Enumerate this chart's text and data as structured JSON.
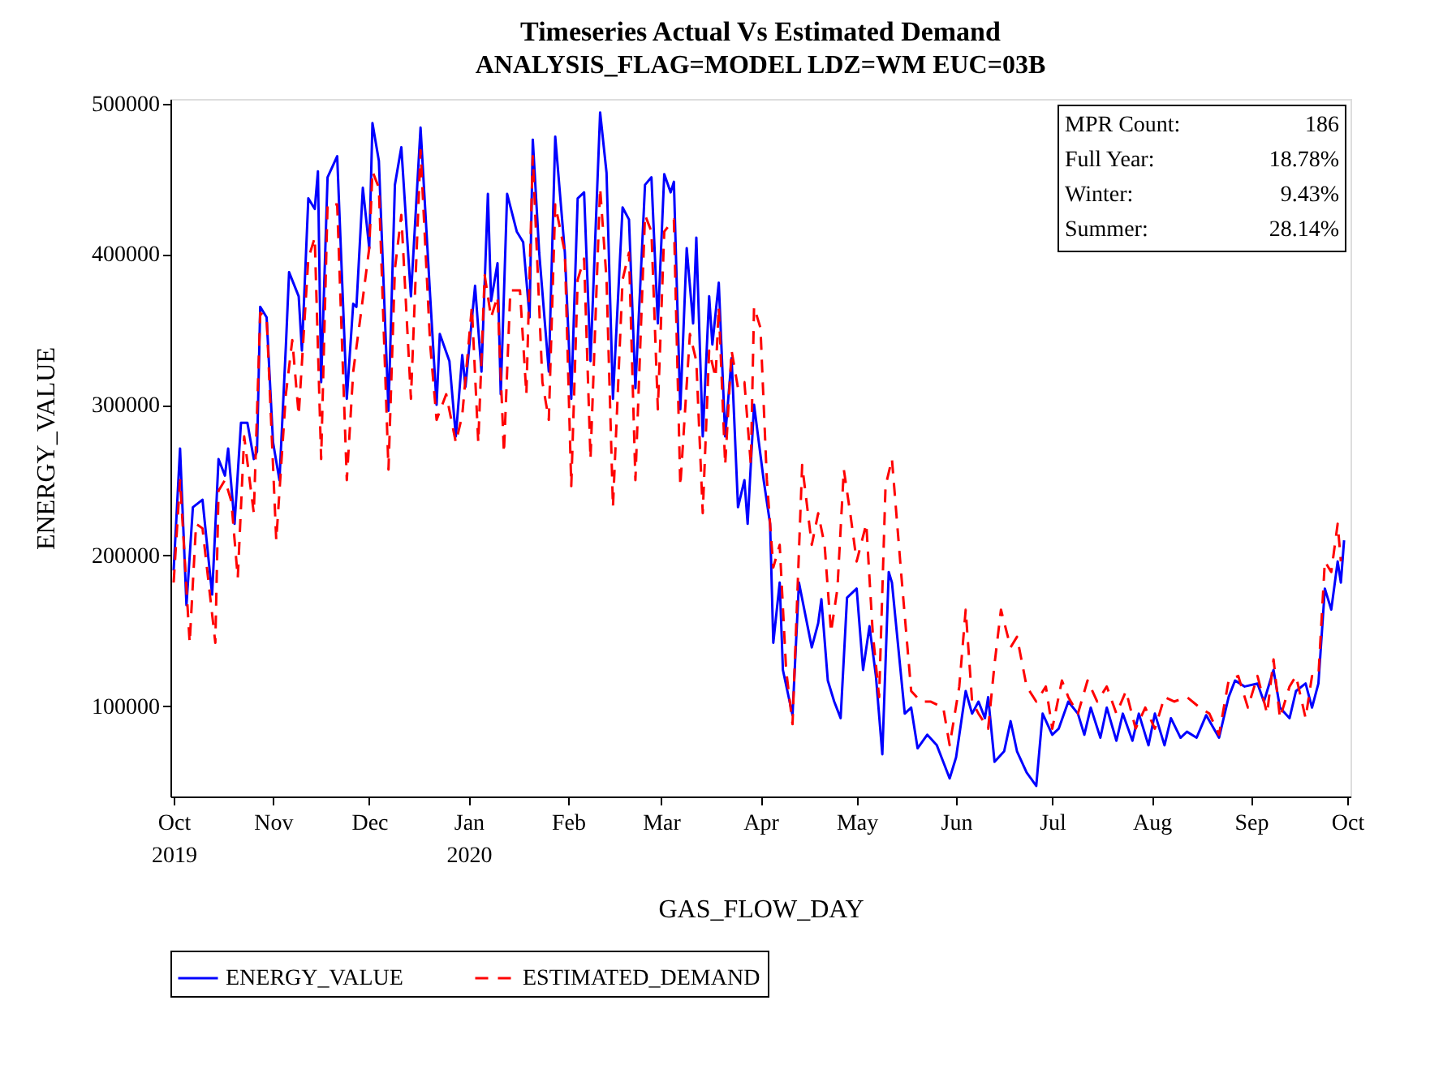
{
  "chart_data": {
    "type": "line",
    "title": "Timeseries Actual Vs Estimated Demand",
    "subtitle": "ANALYSIS_FLAG=MODEL LDZ=WM EUC=03B",
    "xlabel": "GAS_FLOW_DAY",
    "ylabel": "ENERGY_VALUE",
    "xlim": [
      "2019-09-30",
      "2020-10-02"
    ],
    "xticks": [
      {
        "value": "2019-10-01",
        "label": "Oct\n2019"
      },
      {
        "value": "2019-11-01",
        "label": "Nov"
      },
      {
        "value": "2019-12-01",
        "label": "Dec"
      },
      {
        "value": "2020-01-01",
        "label": "Jan\n2020"
      },
      {
        "value": "2020-02-01",
        "label": "Feb"
      },
      {
        "value": "2020-03-01",
        "label": "Mar"
      },
      {
        "value": "2020-04-01",
        "label": "Apr"
      },
      {
        "value": "2020-05-01",
        "label": "May"
      },
      {
        "value": "2020-06-01",
        "label": "Jun"
      },
      {
        "value": "2020-07-01",
        "label": "Jul"
      },
      {
        "value": "2020-08-01",
        "label": "Aug"
      },
      {
        "value": "2020-09-01",
        "label": "Sep"
      },
      {
        "value": "2020-10-01",
        "label": "Oct"
      }
    ],
    "ylim": [
      40000,
      503000
    ],
    "yticks": [
      100000,
      200000,
      300000,
      400000,
      500000
    ],
    "grid": false,
    "legend": "bottom",
    "annotations": [
      "MPR Count: 186",
      "Full Year: 18.78%",
      "Winter: 9.43%",
      "Summer: 28.14%"
    ],
    "series": [
      {
        "name": "ENERGY_VALUE",
        "color": "#0000ff",
        "line_style": "solid",
        "x": [
          "2019-10-01",
          "2019-10-03",
          "2019-10-05",
          "2019-10-07",
          "2019-10-10",
          "2019-10-13",
          "2019-10-15",
          "2019-10-17",
          "2019-10-18",
          "2019-10-20",
          "2019-10-22",
          "2019-10-24",
          "2019-10-26",
          "2019-10-27",
          "2019-10-28",
          "2019-10-30",
          "2019-11-01",
          "2019-11-03",
          "2019-11-05",
          "2019-11-06",
          "2019-11-09",
          "2019-11-10",
          "2019-11-12",
          "2019-11-14",
          "2019-11-15",
          "2019-11-16",
          "2019-11-18",
          "2019-11-21",
          "2019-11-24",
          "2019-11-26",
          "2019-11-27",
          "2019-11-29",
          "2019-12-01",
          "2019-12-02",
          "2019-12-04",
          "2019-12-07",
          "2019-12-09",
          "2019-12-11",
          "2019-12-14",
          "2019-12-17",
          "2019-12-20",
          "2019-12-22",
          "2019-12-23",
          "2019-12-26",
          "2019-12-28",
          "2019-12-30",
          "2019-12-31",
          "2020-01-03",
          "2020-01-05",
          "2020-01-07",
          "2020-01-08",
          "2020-01-10",
          "2020-01-11",
          "2020-01-13",
          "2020-01-16",
          "2020-01-18",
          "2020-01-20",
          "2020-01-21",
          "2020-01-23",
          "2020-01-26",
          "2020-01-28",
          "2020-01-31",
          "2020-02-02",
          "2020-02-04",
          "2020-02-06",
          "2020-02-08",
          "2020-02-11",
          "2020-02-13",
          "2020-02-15",
          "2020-02-18",
          "2020-02-20",
          "2020-02-22",
          "2020-02-25",
          "2020-02-27",
          "2020-02-29",
          "2020-03-02",
          "2020-03-04",
          "2020-03-05",
          "2020-03-07",
          "2020-03-09",
          "2020-03-11",
          "2020-03-12",
          "2020-03-14",
          "2020-03-16",
          "2020-03-17",
          "2020-03-19",
          "2020-03-21",
          "2020-03-23",
          "2020-03-25",
          "2020-03-27",
          "2020-03-28",
          "2020-03-30",
          "2020-04-02",
          "2020-04-04",
          "2020-04-05",
          "2020-04-07",
          "2020-04-08",
          "2020-04-11",
          "2020-04-13",
          "2020-04-17",
          "2020-04-19",
          "2020-04-20",
          "2020-04-22",
          "2020-04-24",
          "2020-04-26",
          "2020-04-28",
          "2020-05-01",
          "2020-05-03",
          "2020-05-05",
          "2020-05-07",
          "2020-05-09",
          "2020-05-11",
          "2020-05-12",
          "2020-05-16",
          "2020-05-18",
          "2020-05-20",
          "2020-05-23",
          "2020-05-26",
          "2020-05-28",
          "2020-05-30",
          "2020-06-01",
          "2020-06-04",
          "2020-06-06",
          "2020-06-08",
          "2020-06-10",
          "2020-06-11",
          "2020-06-13",
          "2020-06-16",
          "2020-06-18",
          "2020-06-20",
          "2020-06-23",
          "2020-06-26",
          "2020-06-28",
          "2020-07-01",
          "2020-07-03",
          "2020-07-06",
          "2020-07-09",
          "2020-07-11",
          "2020-07-13",
          "2020-07-16",
          "2020-07-18",
          "2020-07-21",
          "2020-07-23",
          "2020-07-26",
          "2020-07-28",
          "2020-07-31",
          "2020-08-02",
          "2020-08-05",
          "2020-08-07",
          "2020-08-10",
          "2020-08-12",
          "2020-08-15",
          "2020-08-18",
          "2020-08-22",
          "2020-08-25",
          "2020-08-27",
          "2020-08-30",
          "2020-09-03",
          "2020-09-05",
          "2020-09-08",
          "2020-09-10",
          "2020-09-13",
          "2020-09-15",
          "2020-09-18",
          "2020-09-20",
          "2020-09-22",
          "2020-09-24",
          "2020-09-26",
          "2020-09-28",
          "2020-09-29",
          "2020-09-30"
        ],
        "values": [
          190000,
          271000,
          167000,
          232000,
          237000,
          174000,
          264000,
          253000,
          271000,
          221000,
          288000,
          288000,
          264000,
          269000,
          365000,
          358000,
          275000,
          250000,
          339000,
          388000,
          372000,
          336000,
          437000,
          430000,
          455000,
          315000,
          451000,
          465000,
          304000,
          367000,
          365000,
          444000,
          404000,
          487000,
          462000,
          296000,
          446000,
          471000,
          372000,
          484000,
          372000,
          300000,
          347000,
          329000,
          279000,
          333000,
          312000,
          379000,
          322000,
          440000,
          369000,
          394000,
          307000,
          440000,
          415000,
          408000,
          358000,
          476000,
          401000,
          322000,
          478000,
          401000,
          304000,
          437000,
          441000,
          329000,
          494000,
          454000,
          304000,
          431000,
          423000,
          311000,
          446000,
          451000,
          354000,
          453000,
          441000,
          448000,
          297000,
          404000,
          354000,
          411000,
          279000,
          372000,
          340000,
          381000,
          279000,
          331000,
          232000,
          250000,
          221000,
          300000,
          250000,
          221000,
          142000,
          182000,
          124000,
          94000,
          182000,
          139000,
          155000,
          171000,
          117000,
          103000,
          92000,
          172000,
          178000,
          124000,
          153000,
          120000,
          68000,
          189000,
          182000,
          95000,
          99000,
          72000,
          81000,
          74000,
          63000,
          52000,
          66000,
          110000,
          95000,
          103000,
          92000,
          106000,
          63000,
          70000,
          90000,
          70000,
          56000,
          47000,
          95000,
          81000,
          85000,
          103000,
          95000,
          81000,
          99000,
          79000,
          99000,
          77000,
          95000,
          77000,
          95000,
          74000,
          95000,
          74000,
          92000,
          79000,
          83000,
          79000,
          94000,
          79000,
          106000,
          117000,
          113000,
          115000,
          103000,
          124000,
          99000,
          92000,
          110000,
          115000,
          99000,
          115000,
          178000,
          164000,
          196000,
          182000,
          210000
        ]
      },
      {
        "name": "ESTIMATED_DEMAND",
        "color": "#ff0000",
        "line_style": "dashed",
        "x": [
          "2019-10-01",
          "2019-10-03",
          "2019-10-06",
          "2019-10-08",
          "2019-10-10",
          "2019-10-14",
          "2019-10-15",
          "2019-10-17",
          "2019-10-19",
          "2019-10-21",
          "2019-10-23",
          "2019-10-26",
          "2019-10-28",
          "2019-10-30",
          "2019-11-02",
          "2019-11-05",
          "2019-11-07",
          "2019-11-09",
          "2019-11-12",
          "2019-11-14",
          "2019-11-16",
          "2019-11-18",
          "2019-11-21",
          "2019-11-24",
          "2019-11-26",
          "2019-11-28",
          "2019-12-01",
          "2019-12-02",
          "2019-12-04",
          "2019-12-07",
          "2019-12-09",
          "2019-12-11",
          "2019-12-14",
          "2019-12-17",
          "2019-12-20",
          "2019-12-22",
          "2019-12-25",
          "2019-12-28",
          "2019-12-30",
          "2020-01-02",
          "2020-01-04",
          "2020-01-06",
          "2020-01-08",
          "2020-01-10",
          "2020-01-12",
          "2020-01-14",
          "2020-01-17",
          "2020-01-19",
          "2020-01-21",
          "2020-01-24",
          "2020-01-26",
          "2020-01-28",
          "2020-01-31",
          "2020-02-02",
          "2020-02-04",
          "2020-02-06",
          "2020-02-08",
          "2020-02-11",
          "2020-02-13",
          "2020-02-15",
          "2020-02-18",
          "2020-02-20",
          "2020-02-22",
          "2020-02-25",
          "2020-02-27",
          "2020-02-29",
          "2020-03-02",
          "2020-03-05",
          "2020-03-07",
          "2020-03-10",
          "2020-03-12",
          "2020-03-14",
          "2020-03-16",
          "2020-03-18",
          "2020-03-19",
          "2020-03-21",
          "2020-03-23",
          "2020-03-25",
          "2020-03-27",
          "2020-03-29",
          "2020-03-30",
          "2020-04-01",
          "2020-04-03",
          "2020-04-05",
          "2020-04-07",
          "2020-04-09",
          "2020-04-11",
          "2020-04-14",
          "2020-04-17",
          "2020-04-19",
          "2020-04-21",
          "2020-04-23",
          "2020-04-25",
          "2020-04-27",
          "2020-04-29",
          "2020-05-01",
          "2020-05-04",
          "2020-05-06",
          "2020-05-08",
          "2020-05-10",
          "2020-05-12",
          "2020-05-15",
          "2020-05-18",
          "2020-05-21",
          "2020-05-24",
          "2020-05-28",
          "2020-05-30",
          "2020-06-02",
          "2020-06-04",
          "2020-06-06",
          "2020-06-08",
          "2020-06-11",
          "2020-06-13",
          "2020-06-15",
          "2020-06-18",
          "2020-06-20",
          "2020-06-23",
          "2020-06-26",
          "2020-06-29",
          "2020-07-01",
          "2020-07-04",
          "2020-07-06",
          "2020-07-09",
          "2020-07-12",
          "2020-07-15",
          "2020-07-18",
          "2020-07-21",
          "2020-07-24",
          "2020-07-27",
          "2020-07-30",
          "2020-08-02",
          "2020-08-05",
          "2020-08-08",
          "2020-08-12",
          "2020-08-16",
          "2020-08-19",
          "2020-08-22",
          "2020-08-25",
          "2020-08-28",
          "2020-08-31",
          "2020-09-03",
          "2020-09-06",
          "2020-09-08",
          "2020-09-10",
          "2020-09-13",
          "2020-09-15",
          "2020-09-18",
          "2020-09-20",
          "2020-09-22",
          "2020-09-24",
          "2020-09-26",
          "2020-09-28",
          "2020-09-29"
        ],
        "values": [
          182000,
          250000,
          142000,
          221000,
          218000,
          142000,
          243000,
          250000,
          236000,
          185000,
          279000,
          228000,
          361000,
          358000,
          210000,
          307000,
          343000,
          293000,
          397000,
          411000,
          264000,
          433000,
          433000,
          250000,
          322000,
          354000,
          404000,
          455000,
          444000,
          257000,
          390000,
          426000,
          304000,
          469000,
          340000,
          290000,
          307000,
          275000,
          293000,
          365000,
          275000,
          386000,
          358000,
          372000,
          268000,
          376000,
          376000,
          307000,
          465000,
          315000,
          290000,
          433000,
          401000,
          246000,
          383000,
          397000,
          264000,
          444000,
          383000,
          232000,
          383000,
          401000,
          250000,
          426000,
          415000,
          297000,
          415000,
          423000,
          246000,
          347000,
          329000,
          228000,
          336000,
          318000,
          365000,
          260000,
          336000,
          311000,
          315000,
          260000,
          365000,
          351000,
          250000,
          192000,
          207000,
          124000,
          88000,
          260000,
          207000,
          228000,
          207000,
          149000,
          178000,
          257000,
          228000,
          196000,
          221000,
          149000,
          106000,
          246000,
          264000,
          185000,
          110000,
          103000,
          103000,
          99000,
          74000,
          113000,
          164000,
          103000,
          95000,
          85000,
          128000,
          164000,
          139000,
          146000,
          113000,
          103000,
          113000,
          85000,
          117000,
          106000,
          95000,
          117000,
          103000,
          113000,
          95000,
          110000,
          85000,
          99000,
          85000,
          106000,
          103000,
          106000,
          99000,
          95000,
          81000,
          117000,
          120000,
          99000,
          120000,
          95000,
          131000,
          92000,
          113000,
          120000,
          92000,
          120000,
          120000,
          196000,
          189000,
          221000,
          196000
        ]
      }
    ]
  }
}
